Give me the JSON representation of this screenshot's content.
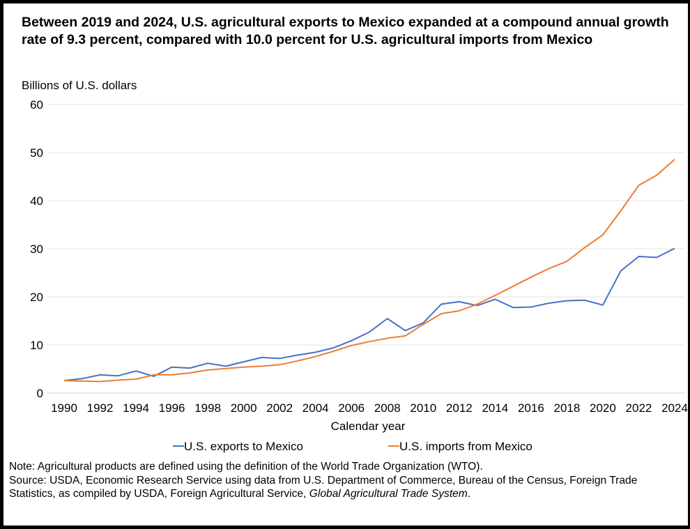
{
  "title": "Between 2019 and 2024, U.S. agricultural exports to Mexico expanded at a compound annual growth rate of 9.3 percent, compared with 10.0 percent for U.S. agricultural imports from Mexico",
  "notes": {
    "note": "Note: Agricultural products are defined using the definition of the World Trade Organization (WTO).",
    "source_prefix": "Source: USDA, Economic Research Service using data from U.S. Department of Commerce, Bureau of the Census, Foreign Trade Statistics, as compiled by USDA, Foreign Agricultural Service,",
    "source_italic": "Global Agricultural Trade System",
    "source_suffix": "."
  },
  "chart_data": {
    "type": "line",
    "title": "Between 2019 and 2024, U.S. agricultural exports to Mexico expanded at a compound annual growth rate of 9.3 percent, compared with 10.0 percent for U.S. agricultural imports from Mexico",
    "ylabel": "Billions of U.S. dollars",
    "xlabel": "Calendar year",
    "ylim": [
      0,
      60
    ],
    "yticks": [
      0,
      10,
      20,
      30,
      40,
      50,
      60
    ],
    "xlim": [
      1990,
      2024
    ],
    "xticks": [
      1990,
      1992,
      1994,
      1996,
      1998,
      2000,
      2002,
      2004,
      2006,
      2008,
      2010,
      2012,
      2014,
      2016,
      2018,
      2020,
      2022,
      2024
    ],
    "grid": "horizontal",
    "legend": "bottom",
    "x": [
      1990,
      1991,
      1992,
      1993,
      1994,
      1995,
      1996,
      1997,
      1998,
      1999,
      2000,
      2001,
      2002,
      2003,
      2004,
      2005,
      2006,
      2007,
      2008,
      2009,
      2010,
      2011,
      2012,
      2013,
      2014,
      2015,
      2016,
      2017,
      2018,
      2019,
      2020,
      2021,
      2022,
      2023,
      2024
    ],
    "series": [
      {
        "name": "U.S. exports to Mexico",
        "color": "#4472C4",
        "values": [
          2.6,
          3.0,
          3.8,
          3.6,
          4.6,
          3.5,
          5.4,
          5.2,
          6.2,
          5.6,
          6.5,
          7.4,
          7.2,
          7.9,
          8.5,
          9.4,
          10.9,
          12.7,
          15.5,
          13.0,
          14.6,
          18.5,
          19.0,
          18.2,
          19.5,
          17.8,
          17.9,
          18.7,
          19.2,
          19.3,
          18.3,
          25.4,
          28.4,
          28.2,
          30.1
        ]
      },
      {
        "name": "U.S. imports from Mexico",
        "color": "#ED7D31",
        "values": [
          2.6,
          2.5,
          2.4,
          2.7,
          2.9,
          3.8,
          3.8,
          4.2,
          4.8,
          5.1,
          5.4,
          5.6,
          5.9,
          6.7,
          7.6,
          8.7,
          9.9,
          10.7,
          11.4,
          11.9,
          14.3,
          16.5,
          17.1,
          18.5,
          20.3,
          22.2,
          24.1,
          25.9,
          27.4,
          30.3,
          32.9,
          37.9,
          43.2,
          45.3,
          48.6
        ]
      }
    ]
  }
}
